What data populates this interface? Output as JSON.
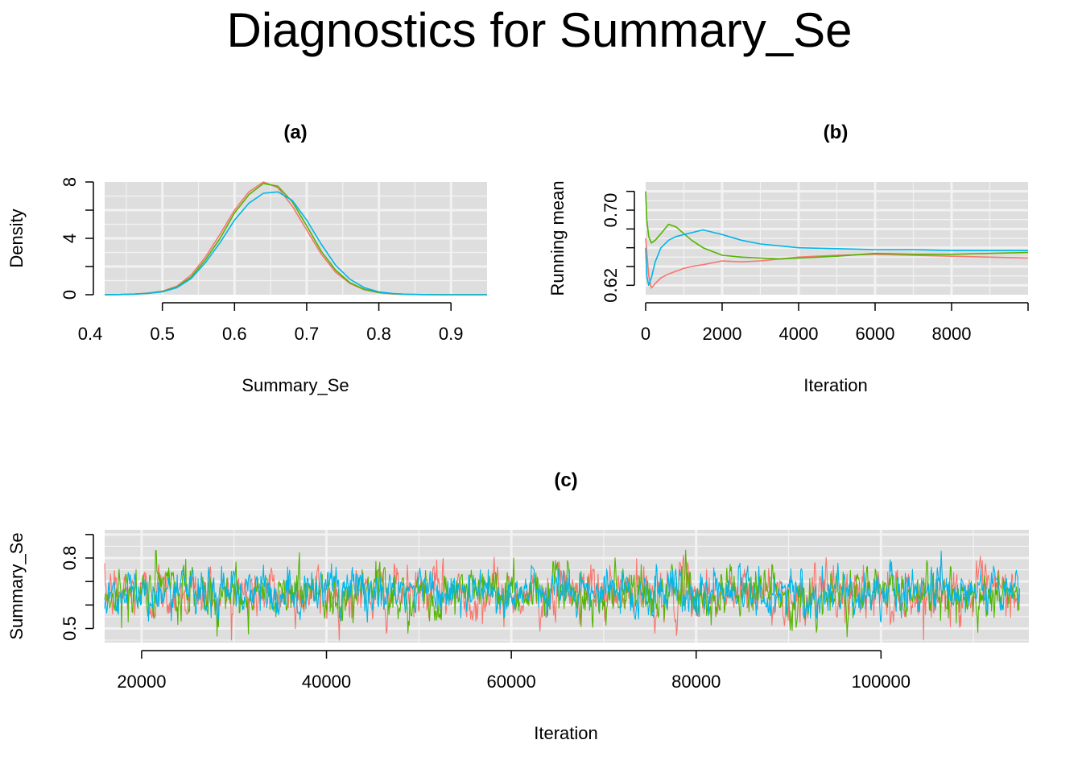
{
  "title": "Diagnostics for Summary_Se",
  "colors": {
    "chain1": "#f8766d",
    "chain2": "#53b400",
    "chain3": "#00b6eb",
    "panel_bg": "#dedede",
    "grid": "#f2f2f2"
  },
  "chart_data": [
    {
      "id": "a",
      "type": "line",
      "title": "(a)",
      "xlabel": "Summary_Se",
      "ylabel": "Density",
      "xlim": [
        0.42,
        0.95
      ],
      "ylim": [
        0,
        8
      ],
      "x_ticks": [
        "0.4",
        "0.5",
        "0.6",
        "0.7",
        "0.8",
        "0.9"
      ],
      "y_ticks": [
        "0",
        "4",
        "8"
      ],
      "y_minor_ticks": [
        2,
        6
      ],
      "grid": true,
      "x": [
        0.42,
        0.44,
        0.46,
        0.48,
        0.5,
        0.52,
        0.54,
        0.56,
        0.58,
        0.6,
        0.62,
        0.64,
        0.66,
        0.68,
        0.7,
        0.72,
        0.74,
        0.76,
        0.78,
        0.8,
        0.82,
        0.84,
        0.86,
        0.88,
        0.9,
        0.92,
        0.95
      ],
      "series": [
        {
          "chain": 1,
          "values": [
            0.0,
            0.01,
            0.04,
            0.12,
            0.25,
            0.6,
            1.4,
            2.7,
            4.3,
            6.0,
            7.3,
            8.0,
            7.6,
            6.3,
            4.6,
            2.9,
            1.6,
            0.8,
            0.35,
            0.14,
            0.05,
            0.02,
            0.01,
            0.0,
            0.0,
            0.0,
            0.0
          ]
        },
        {
          "chain": 2,
          "values": [
            0.0,
            0.01,
            0.04,
            0.1,
            0.22,
            0.55,
            1.25,
            2.5,
            4.0,
            5.8,
            7.1,
            7.9,
            7.7,
            6.6,
            4.9,
            3.1,
            1.75,
            0.85,
            0.38,
            0.16,
            0.07,
            0.03,
            0.01,
            0.0,
            0.0,
            0.0,
            0.0
          ]
        },
        {
          "chain": 3,
          "values": [
            0.0,
            0.01,
            0.04,
            0.1,
            0.2,
            0.5,
            1.15,
            2.3,
            3.7,
            5.3,
            6.5,
            7.2,
            7.3,
            6.7,
            5.3,
            3.6,
            2.1,
            1.1,
            0.5,
            0.2,
            0.08,
            0.03,
            0.01,
            0.0,
            0.0,
            0.0,
            0.0
          ]
        }
      ]
    },
    {
      "id": "b",
      "type": "line",
      "title": "(b)",
      "xlabel": "Iteration",
      "ylabel": "Running mean",
      "xlim": [
        0,
        10000
      ],
      "ylim": [
        0.61,
        0.73
      ],
      "x_ticks": [
        "0",
        "2000",
        "4000",
        "6000",
        "8000"
      ],
      "y_ticks": [
        "0.62",
        "0.70"
      ],
      "y_minor_ticks": [
        0.64,
        0.66,
        0.68,
        0.72
      ],
      "grid": true,
      "x": [
        0,
        30,
        80,
        150,
        250,
        400,
        600,
        800,
        1000,
        1200,
        1500,
        2000,
        2500,
        3000,
        3500,
        4000,
        5000,
        6000,
        7000,
        8000,
        9000,
        10000
      ],
      "series": [
        {
          "chain": 1,
          "values": [
            0.67,
            0.655,
            0.63,
            0.617,
            0.622,
            0.628,
            0.632,
            0.635,
            0.638,
            0.64,
            0.642,
            0.646,
            0.645,
            0.646,
            0.648,
            0.65,
            0.652,
            0.653,
            0.652,
            0.651,
            0.65,
            0.649
          ]
        },
        {
          "chain": 2,
          "values": [
            0.72,
            0.69,
            0.672,
            0.665,
            0.668,
            0.675,
            0.685,
            0.682,
            0.675,
            0.668,
            0.66,
            0.652,
            0.65,
            0.649,
            0.648,
            0.649,
            0.651,
            0.654,
            0.653,
            0.653,
            0.654,
            0.655
          ]
        },
        {
          "chain": 3,
          "values": [
            0.66,
            0.63,
            0.62,
            0.628,
            0.645,
            0.66,
            0.668,
            0.672,
            0.674,
            0.676,
            0.679,
            0.674,
            0.668,
            0.664,
            0.662,
            0.66,
            0.659,
            0.658,
            0.658,
            0.657,
            0.657,
            0.657
          ]
        }
      ]
    },
    {
      "id": "c",
      "type": "line",
      "title": "(c)",
      "xlabel": "Iteration",
      "ylabel": "Summary_Se",
      "xlim": [
        16000,
        116000
      ],
      "ylim": [
        0.44,
        0.92
      ],
      "x_ticks": [
        "20000",
        "40000",
        "60000",
        "80000",
        "100000"
      ],
      "y_ticks": [
        "0.5",
        "0.8"
      ],
      "y_minor_ticks": [
        0.6,
        0.7,
        0.9
      ],
      "grid": true,
      "chains": [
        {
          "chain": 1,
          "mean": 0.648,
          "sd": 0.055
        },
        {
          "chain": 2,
          "mean": 0.655,
          "sd": 0.055
        },
        {
          "chain": 3,
          "mean": 0.655,
          "sd": 0.05
        }
      ]
    }
  ]
}
